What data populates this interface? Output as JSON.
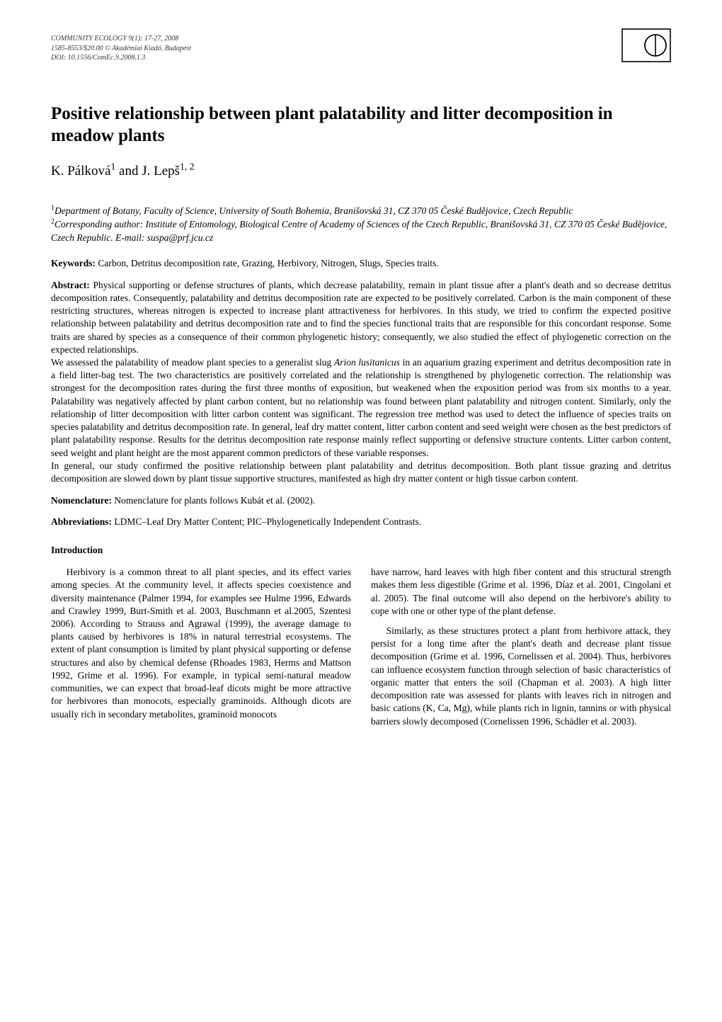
{
  "header": {
    "line1": "COMMUNITY ECOLOGY 9(1): 17-27, 2008",
    "line2": "1585-8553/$20.00 © Akadémiai Kiadó, Budapest",
    "line3": "DOI: 10.1556/ComEc.9.2008.1.3"
  },
  "corner_icon": {
    "name": "publisher-logo-icon",
    "stroke": "#000000",
    "stroke_width": 1.6
  },
  "title": "Positive relationship between plant palatability and litter decomposition in meadow plants",
  "authors_html": "K. Pálková<sup>1</sup> and J. Lepš<sup>1, 2</sup>",
  "affiliations": {
    "a1_html": "<sup>1</sup><i>Department of Botany, Faculty of Science, University of South Bohemia, Branišovská 31, CZ 370 05 České Budějovice, Czech Republic</i>",
    "a2_html": "<sup>2</sup><i>Corresponding author: Institute of Entomology, Biological Centre of Academy of Sciences of the Czech Republic, Branišovská 31, CZ 370 05 České Budějovice, Czech Republic. E-mail: suspa@prf.jcu.cz</i>"
  },
  "keywords": {
    "label": "Keywords:",
    "text": " Carbon, Detritus decomposition rate, Grazing, Herbivory, Nitrogen, Slugs, Species traits."
  },
  "abstract": {
    "label": "Abstract:",
    "p1": " Physical supporting or defense structures of plants, which decrease palatability, remain in plant tissue after a plant's death and so decrease detritus decomposition rates. Consequently, palatability and detritus decomposition rate are expected to be positively correlated. Carbon is the main component of these restricting structures, whereas nitrogen is expected to increase plant attractiveness for herbivores. In this study, we tried to confirm the expected positive relationship between palatability and detritus decomposition rate and to find the species functional traits that are responsible for this concordant response. Some traits are shared by species as a consequence of their common phylogenetic history; consequently, we also studied the effect of phylogenetic correction on the expected relationships.",
    "p2_html": "We assessed the palatability of meadow plant species to a generalist slug <i>Arion lusitanicus</i> in an aquarium grazing experiment and detritus decomposition rate in a field litter-bag test. The two characteristics are positively correlated and the relationship is strengthened by phylogenetic correction. The relationship was strongest for the decomposition rates during the first three months of exposition, but weakened when the exposition period was from six months to a year. Palatability was negatively affected by plant carbon content, but no relationship was found between plant palatability and nitrogen content. Similarly, only the relationship of litter decomposition with litter carbon content was significant. The regression tree method was used to detect the influence of species traits on species palatability and detritus decomposition rate. In general, leaf dry matter content, litter carbon content and seed weight were chosen as the best predictors of plant palatability response. Results for the detritus decomposition rate response mainly reflect supporting or defensive structure contents. Litter carbon content, seed weight and plant height are the most apparent common predictors of these variable responses.",
    "p3": " In general, our study confirmed the positive relationship between plant palatability and detritus decomposition. Both plant tissue grazing and detritus decomposition are slowed down by plant tissue supportive structures, manifested as high dry matter content or high tissue carbon content."
  },
  "nomenclature": {
    "label": "Nomenclature:",
    "text": " Nomenclature for plants follows Kubát et al. (2002)."
  },
  "abbreviations": {
    "label": "Abbreviations:",
    "text": " LDMC–Leaf Dry Matter Content; PIC–Phylogenetically Independent Contrasts."
  },
  "section_heading": "Introduction",
  "intro": {
    "c1p1": "Herbivory is a common threat to all plant species, and its effect varies among species. At the community level, it affects species coexistence and diversity maintenance (Palmer 1994, for examples see Hulme 1996, Edwards and Crawley 1999, Burt-Smith et al. 2003, Buschmann et al.2005, Szentesi 2006). According to Strauss and Agrawal (1999), the average damage to plants caused by herbivores is 18% in natural terrestrial ecosystems. The extent of plant consumption is limited by plant physical supporting or defense structures and also by chemical defense (Rhoades 1983, Herms and Mattson 1992, Grime et al. 1996). For example, in typical semi-natural meadow communities, we can expect that broad-leaf dicots might be more attractive for herbivores than monocots, especially graminoids. Although dicots are usually rich in secondary metabolites, graminoid monocots",
    "c2p1": "have narrow, hard leaves with high fiber content and this structural strength makes them less digestible (Grime et al. 1996, Díaz et al. 2001, Cingolani et al. 2005). The final outcome will also depend on the herbivore's ability to cope with one or other type of the plant defense.",
    "c2p2": "Similarly, as these structures protect a plant from herbivore attack, they persist for a long time after the plant's death and decrease plant tissue decomposition (Grime et al. 1996, Cornelissen et al. 2004). Thus, herbivores can influence ecosystem function through selection of basic characteristics of organic matter that enters the soil (Chapman et al. 2003). A high litter decomposition rate was assessed for plants with leaves rich in nitrogen and basic cations (K, Ca, Mg), while plants rich in lignin, tannins or with physical barriers slowly decomposed (Cornelissen 1996, Schädler et al. 2003)."
  }
}
